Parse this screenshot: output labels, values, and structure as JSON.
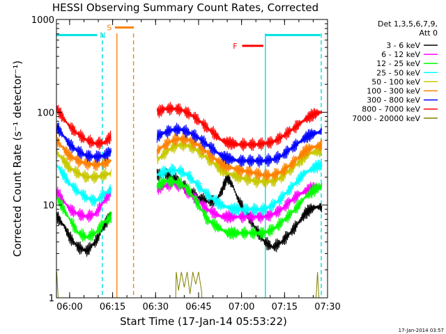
{
  "chart_data": {
    "type": "line",
    "title": "HESSI Observing Summary Count Rates, Corrected",
    "xlabel": "Start Time (17-Jan-14 05:53:22)",
    "ylabel": "Corrected Count Rate (s⁻¹ detector⁻¹)",
    "ylog": true,
    "ylim": [
      1,
      1000
    ],
    "yticks": [
      {
        "value": 1,
        "label": "1"
      },
      {
        "value": 10,
        "label": "10"
      },
      {
        "value": 100,
        "label": "100"
      },
      {
        "value": 1000,
        "label": "1000"
      }
    ],
    "xlim": [
      355.4,
      450
    ],
    "xtick_labels": [
      "06:00",
      "06:15",
      "06:30",
      "06:45",
      "07:00",
      "07:15",
      "07:30"
    ],
    "xticks": [
      360,
      375,
      390,
      405,
      420,
      435,
      450
    ],
    "timestamp": "17-Jan-2014 03:57",
    "legend": {
      "placement": "right",
      "header": [
        "Det 1,3,5,6,7,9,",
        "Att 0"
      ]
    },
    "gaps": [
      [
        374.9,
        390.5
      ]
    ],
    "series": [
      {
        "name": "3 - 6 keV",
        "color": "#000000",
        "points": [
          [
            355.5,
            7.5
          ],
          [
            358,
            6
          ],
          [
            360,
            4.5
          ],
          [
            363,
            3.5
          ],
          [
            366,
            3.2
          ],
          [
            369,
            4
          ],
          [
            372,
            6
          ],
          [
            374.5,
            8
          ],
          [
            390.5,
            21
          ],
          [
            393,
            22
          ],
          [
            396,
            20
          ],
          [
            399,
            17
          ],
          [
            402,
            14
          ],
          [
            405,
            12
          ],
          [
            408,
            11
          ],
          [
            411,
            11
          ],
          [
            413,
            14
          ],
          [
            415,
            20
          ],
          [
            417,
            16
          ],
          [
            419,
            11
          ],
          [
            422,
            8
          ],
          [
            425,
            5.5
          ],
          [
            428,
            4
          ],
          [
            431,
            3.5
          ],
          [
            434,
            4
          ],
          [
            437,
            5
          ],
          [
            440,
            6.5
          ],
          [
            442,
            8
          ],
          [
            444,
            9
          ],
          [
            446,
            9.5
          ],
          [
            448,
            9.5
          ]
        ]
      },
      {
        "name": "6 - 12 keV",
        "color": "#ff00ff",
        "points": [
          [
            355.5,
            14
          ],
          [
            358,
            11
          ],
          [
            360,
            9
          ],
          [
            363,
            8
          ],
          [
            366,
            7.5
          ],
          [
            369,
            8
          ],
          [
            372,
            11
          ],
          [
            374.5,
            14
          ],
          [
            390.5,
            15
          ],
          [
            393,
            16
          ],
          [
            396,
            17
          ],
          [
            399,
            16
          ],
          [
            402,
            13
          ],
          [
            405,
            11
          ],
          [
            408,
            9
          ],
          [
            411,
            8
          ],
          [
            413,
            7.5
          ],
          [
            415,
            7.5
          ],
          [
            417,
            7.5
          ],
          [
            419,
            7.5
          ],
          [
            422,
            7.5
          ],
          [
            425,
            7.5
          ],
          [
            428,
            7.5
          ],
          [
            431,
            8
          ],
          [
            434,
            9
          ],
          [
            437,
            11
          ],
          [
            440,
            13
          ],
          [
            442,
            14
          ],
          [
            444,
            15
          ],
          [
            446,
            15.5
          ],
          [
            448,
            16
          ]
        ]
      },
      {
        "name": "12 - 25 keV",
        "color": "#00ff00",
        "points": [
          [
            355.5,
            12
          ],
          [
            358,
            9
          ],
          [
            360,
            7
          ],
          [
            363,
            5
          ],
          [
            366,
            4.5
          ],
          [
            369,
            5
          ],
          [
            372,
            6.5
          ],
          [
            374.5,
            7.5
          ],
          [
            390.5,
            16
          ],
          [
            393,
            18
          ],
          [
            396,
            18
          ],
          [
            399,
            17
          ],
          [
            402,
            14
          ],
          [
            405,
            10
          ],
          [
            408,
            7
          ],
          [
            411,
            6
          ],
          [
            413,
            5.5
          ],
          [
            415,
            5
          ],
          [
            417,
            5
          ],
          [
            419,
            5
          ],
          [
            422,
            5
          ],
          [
            425,
            5
          ],
          [
            428,
            5
          ],
          [
            431,
            5.5
          ],
          [
            434,
            6.5
          ],
          [
            437,
            8
          ],
          [
            440,
            10
          ],
          [
            442,
            12
          ],
          [
            444,
            13.5
          ],
          [
            446,
            15
          ],
          [
            448,
            16
          ]
        ]
      },
      {
        "name": "25 - 50 keV",
        "color": "#00ffff",
        "points": [
          [
            355.5,
            27
          ],
          [
            358,
            21
          ],
          [
            360,
            17
          ],
          [
            363,
            14
          ],
          [
            366,
            12
          ],
          [
            369,
            11
          ],
          [
            372,
            13
          ],
          [
            374.5,
            15
          ],
          [
            390.5,
            21
          ],
          [
            393,
            23
          ],
          [
            396,
            24
          ],
          [
            399,
            23
          ],
          [
            402,
            20
          ],
          [
            405,
            16
          ],
          [
            408,
            13
          ],
          [
            411,
            11
          ],
          [
            413,
            10
          ],
          [
            415,
            9.5
          ],
          [
            417,
            9
          ],
          [
            419,
            9
          ],
          [
            422,
            9
          ],
          [
            425,
            9
          ],
          [
            428,
            9
          ],
          [
            431,
            10
          ],
          [
            434,
            12
          ],
          [
            437,
            15
          ],
          [
            440,
            19
          ],
          [
            442,
            22
          ],
          [
            444,
            24
          ],
          [
            446,
            26
          ],
          [
            448,
            27
          ]
        ]
      },
      {
        "name": "50 - 100 keV",
        "color": "#c8c800",
        "points": [
          [
            355.5,
            37
          ],
          [
            358,
            30
          ],
          [
            360,
            25
          ],
          [
            363,
            22
          ],
          [
            366,
            20
          ],
          [
            369,
            20
          ],
          [
            372,
            21
          ],
          [
            374.5,
            22
          ],
          [
            390.5,
            30
          ],
          [
            393,
            36
          ],
          [
            396,
            42
          ],
          [
            399,
            45
          ],
          [
            402,
            43
          ],
          [
            405,
            38
          ],
          [
            408,
            32
          ],
          [
            411,
            27
          ],
          [
            413,
            24
          ],
          [
            415,
            22
          ],
          [
            417,
            21
          ],
          [
            419,
            20
          ],
          [
            422,
            19
          ],
          [
            425,
            18
          ],
          [
            428,
            18
          ],
          [
            431,
            18
          ],
          [
            434,
            20
          ],
          [
            437,
            24
          ],
          [
            440,
            29
          ],
          [
            442,
            33
          ],
          [
            444,
            36
          ],
          [
            446,
            38
          ],
          [
            448,
            39
          ]
        ]
      },
      {
        "name": "100 - 300 keV",
        "color": "#ff8000",
        "points": [
          [
            355.5,
            50
          ],
          [
            358,
            40
          ],
          [
            360,
            34
          ],
          [
            363,
            30
          ],
          [
            366,
            28
          ],
          [
            369,
            27
          ],
          [
            372,
            28
          ],
          [
            374.5,
            30
          ],
          [
            390.5,
            38
          ],
          [
            393,
            44
          ],
          [
            396,
            50
          ],
          [
            399,
            52
          ],
          [
            402,
            50
          ],
          [
            405,
            44
          ],
          [
            408,
            37
          ],
          [
            411,
            31
          ],
          [
            413,
            28
          ],
          [
            415,
            26
          ],
          [
            417,
            25
          ],
          [
            419,
            24
          ],
          [
            422,
            23
          ],
          [
            425,
            22
          ],
          [
            428,
            21
          ],
          [
            431,
            21
          ],
          [
            434,
            23
          ],
          [
            437,
            27
          ],
          [
            440,
            33
          ],
          [
            442,
            38
          ],
          [
            444,
            41
          ],
          [
            446,
            43
          ],
          [
            448,
            44
          ]
        ]
      },
      {
        "name": "300 - 800 keV",
        "color": "#0000ff",
        "points": [
          [
            355.5,
            70
          ],
          [
            358,
            55
          ],
          [
            360,
            45
          ],
          [
            363,
            38
          ],
          [
            366,
            34
          ],
          [
            369,
            33
          ],
          [
            372,
            34
          ],
          [
            374.5,
            38
          ],
          [
            390.5,
            55
          ],
          [
            393,
            60
          ],
          [
            396,
            65
          ],
          [
            399,
            65
          ],
          [
            402,
            60
          ],
          [
            405,
            53
          ],
          [
            408,
            45
          ],
          [
            411,
            38
          ],
          [
            413,
            34
          ],
          [
            415,
            32
          ],
          [
            417,
            31
          ],
          [
            419,
            30
          ],
          [
            422,
            30
          ],
          [
            425,
            30
          ],
          [
            428,
            30
          ],
          [
            431,
            31
          ],
          [
            434,
            34
          ],
          [
            437,
            40
          ],
          [
            440,
            47
          ],
          [
            442,
            53
          ],
          [
            444,
            57
          ],
          [
            446,
            60
          ],
          [
            448,
            62
          ]
        ]
      },
      {
        "name": "800 - 7000 keV",
        "color": "#ff0000",
        "points": [
          [
            355.5,
            110
          ],
          [
            358,
            85
          ],
          [
            360,
            70
          ],
          [
            363,
            58
          ],
          [
            366,
            50
          ],
          [
            369,
            46
          ],
          [
            372,
            47
          ],
          [
            374.5,
            55
          ],
          [
            390.5,
            100
          ],
          [
            393,
            108
          ],
          [
            396,
            110
          ],
          [
            399,
            106
          ],
          [
            402,
            96
          ],
          [
            405,
            82
          ],
          [
            408,
            68
          ],
          [
            411,
            57
          ],
          [
            413,
            50
          ],
          [
            415,
            47
          ],
          [
            417,
            46
          ],
          [
            419,
            45
          ],
          [
            422,
            45
          ],
          [
            425,
            45
          ],
          [
            428,
            46
          ],
          [
            431,
            48
          ],
          [
            434,
            54
          ],
          [
            437,
            63
          ],
          [
            440,
            74
          ],
          [
            442,
            83
          ],
          [
            444,
            91
          ],
          [
            446,
            97
          ],
          [
            448,
            101
          ]
        ]
      },
      {
        "name": "7000 - 20000 keV",
        "color": "#808000",
        "points": [
          [
            355.5,
            1.9
          ],
          [
            356,
            1
          ],
          [
            357,
            1
          ],
          [
            397,
            1
          ],
          [
            397.2,
            1.9
          ],
          [
            398,
            1.2
          ],
          [
            399,
            1.9
          ],
          [
            400,
            1.3
          ],
          [
            401,
            1.9
          ],
          [
            402,
            1.1
          ],
          [
            403,
            1.9
          ],
          [
            404,
            1.4
          ],
          [
            405,
            1.9
          ],
          [
            406,
            1.2
          ],
          [
            406.2,
            1
          ],
          [
            446,
            1
          ],
          [
            446.5,
            1.9
          ],
          [
            447,
            1
          ]
        ]
      }
    ],
    "annotations": [
      {
        "label": "N",
        "color": "#00e0e0",
        "bar": [
          355.5,
          369.6
        ],
        "bar_y": 680,
        "lines": [
          371.4
        ]
      },
      {
        "label": "S",
        "color": "#ff8000",
        "bar": [
          375.8,
          382.4
        ],
        "bar_y": 820,
        "lines": [
          376.5,
          382.3
        ]
      },
      {
        "label": "F",
        "color": "#ff0000",
        "bar": [
          420.2,
          427.6
        ],
        "bar_y": 520,
        "lines": []
      },
      {
        "label": "",
        "color": "#00e0e0",
        "bar": [
          428.3,
          447.5
        ],
        "bar_y": 680,
        "lines": [
          428.3,
          447.8
        ]
      }
    ]
  }
}
